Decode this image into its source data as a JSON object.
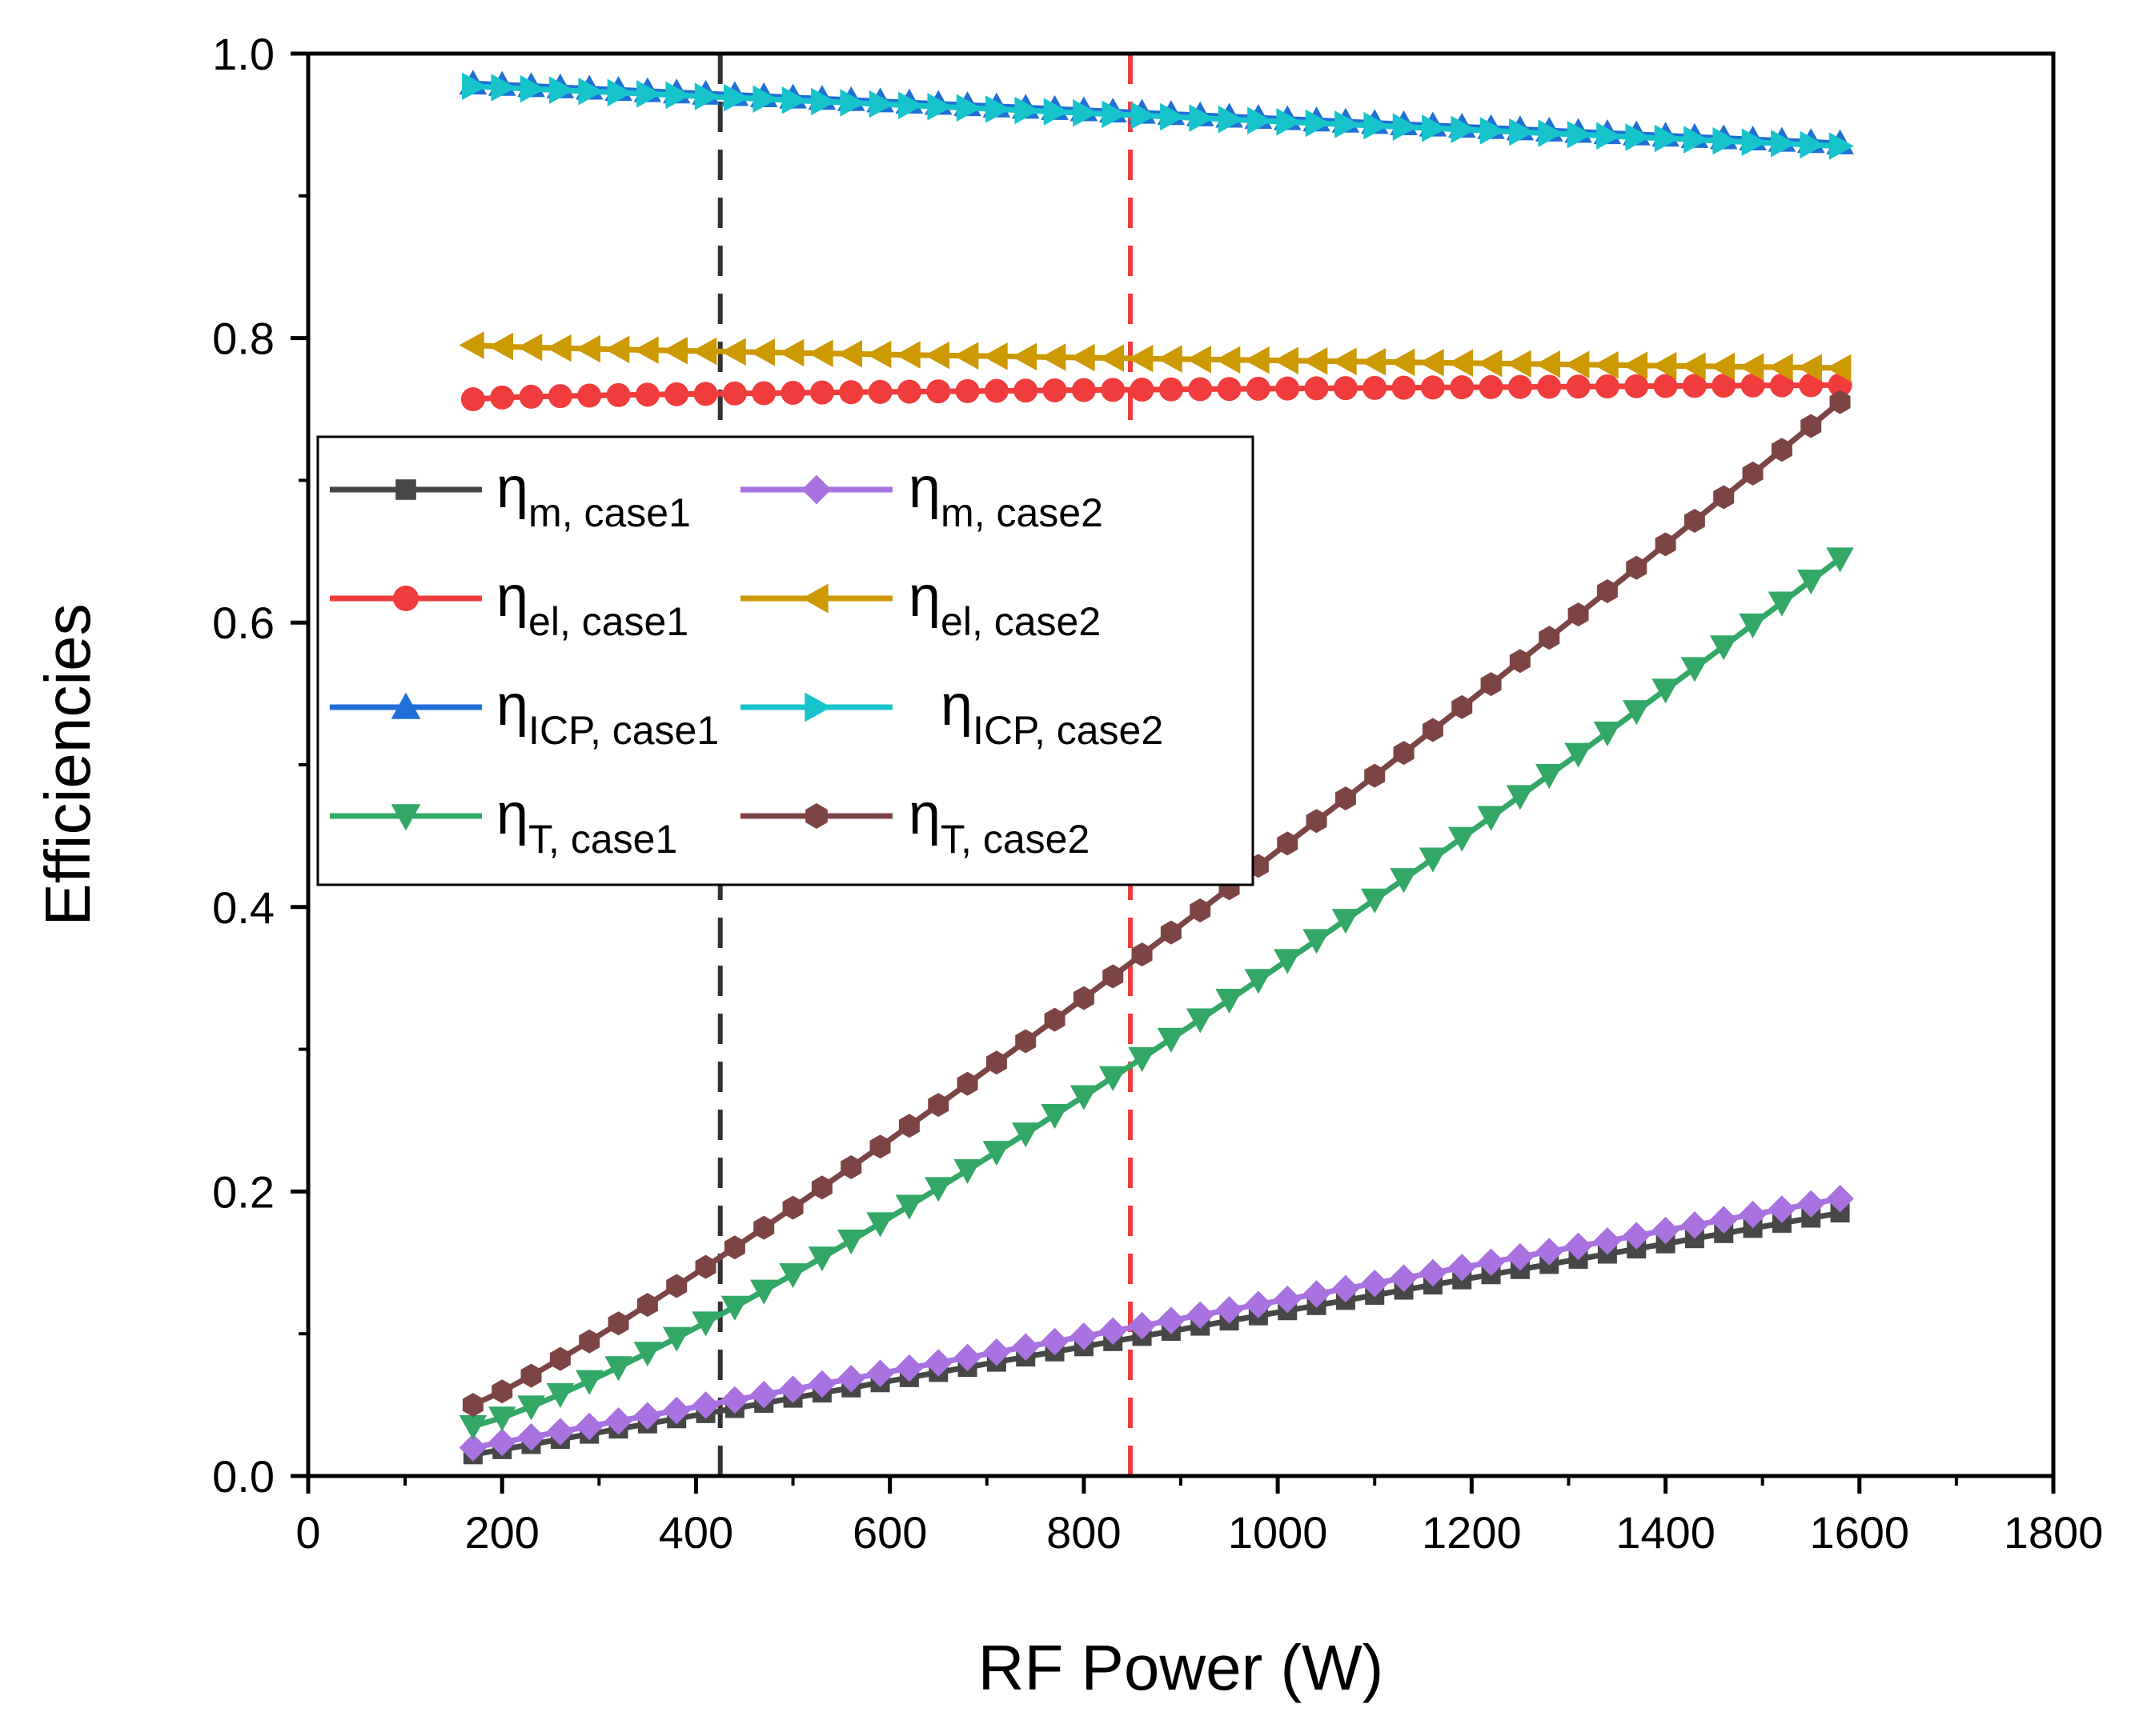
{
  "chart_data": {
    "type": "line",
    "title": "",
    "xlabel": "RF Power (W)",
    "ylabel": "Efficiencies",
    "xlim": [
      0,
      1800
    ],
    "ylim": [
      0,
      1.0
    ],
    "x_ticks": [
      0,
      200,
      400,
      600,
      800,
      1000,
      1200,
      1400,
      1600,
      1800
    ],
    "y_ticks": [
      0.0,
      0.2,
      0.4,
      0.6,
      0.8,
      1.0
    ],
    "x_tick_labels": [
      "0",
      "200",
      "400",
      "600",
      "800",
      "1000",
      "1200",
      "1400",
      "1600",
      "1800"
    ],
    "y_tick_labels": [
      "0.0",
      "0.2",
      "0.4",
      "0.6",
      "0.8",
      "1.0"
    ],
    "grid": false,
    "legend_position": "center-left",
    "x": [
      170,
      200,
      230,
      260,
      290,
      320,
      350,
      380,
      410,
      440,
      470,
      500,
      530,
      560,
      590,
      620,
      650,
      680,
      710,
      740,
      770,
      800,
      830,
      860,
      890,
      920,
      950,
      980,
      1010,
      1040,
      1070,
      1100,
      1130,
      1160,
      1190,
      1220,
      1250,
      1280,
      1310,
      1340,
      1370,
      1400,
      1430,
      1460,
      1490,
      1520,
      1550,
      1580
    ],
    "series": [
      {
        "name": "η",
        "sub": "m, case1",
        "color": "#474747",
        "marker": "square",
        "endpoints": [
          0.015,
          0.185
        ],
        "curve": 1.0
      },
      {
        "name": "η",
        "sub": "m, case2",
        "color": "#a873e0",
        "marker": "diamond",
        "endpoints": [
          0.02,
          0.195
        ],
        "curve": 1.0
      },
      {
        "name": "η",
        "sub": "el, case1",
        "color": "#f03c3c",
        "marker": "circle",
        "endpoints": [
          0.757,
          0.767
        ],
        "curve": 0.55
      },
      {
        "name": "η",
        "sub": "el, case2",
        "color": "#cc9900",
        "marker": "triangle-left",
        "endpoints": [
          0.795,
          0.779
        ],
        "curve": 0.75
      },
      {
        "name": "η",
        "sub": "ICP, case1",
        "color": "#1f6fd6",
        "marker": "triangle-up",
        "endpoints": [
          0.979,
          0.937
        ],
        "curve": 1.0
      },
      {
        "name": "η",
        "sub": "ICP, case2",
        "color": "#17c4cc",
        "marker": "triangle-right",
        "endpoints": [
          0.977,
          0.935
        ],
        "curve": 1.0
      },
      {
        "name": "η",
        "sub": "T, case1",
        "color": "#33a866",
        "marker": "triangle-down",
        "endpoints": [
          0.035,
          0.645
        ],
        "curve": 1.2
      },
      {
        "name": "η",
        "sub": "T, case2",
        "color": "#7d4444",
        "marker": "hexagon",
        "endpoints": [
          0.05,
          0.755
        ],
        "curve": 1.12
      }
    ],
    "reference_lines": [
      {
        "x": 425,
        "color": "#333333",
        "style": "dashed"
      },
      {
        "x": 848,
        "color": "#f03c3c",
        "style": "dashed"
      }
    ]
  }
}
